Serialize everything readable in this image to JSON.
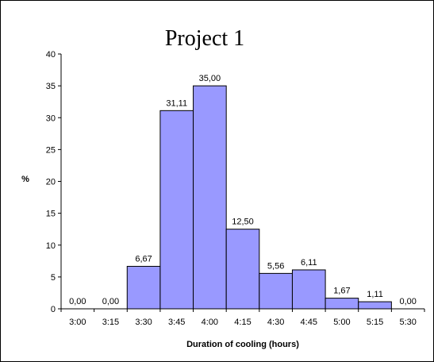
{
  "chart_data": {
    "type": "bar",
    "title": "Project 1",
    "xlabel": "Duration of cooling (hours)",
    "ylabel": "%",
    "categories": [
      "3:00",
      "3:15",
      "3:30",
      "3:45",
      "4:00",
      "4:15",
      "4:30",
      "4:45",
      "5:00",
      "5:15",
      "5:30"
    ],
    "values": [
      0,
      0,
      6.67,
      31.11,
      35,
      12.5,
      5.56,
      6.11,
      1.67,
      1.11,
      0
    ],
    "value_labels": [
      "0,00",
      "0,00",
      "6,67",
      "31,11",
      "35,00",
      "12,50",
      "5,56",
      "6,11",
      "1,67",
      "1,11",
      "0,00"
    ],
    "ylim": [
      0,
      40
    ],
    "yticks": [
      0,
      5,
      10,
      15,
      20,
      25,
      30,
      35,
      40
    ],
    "grid": false,
    "legend": "none",
    "bar_color": "#9999FF",
    "bar_edge_color": "#000000"
  }
}
